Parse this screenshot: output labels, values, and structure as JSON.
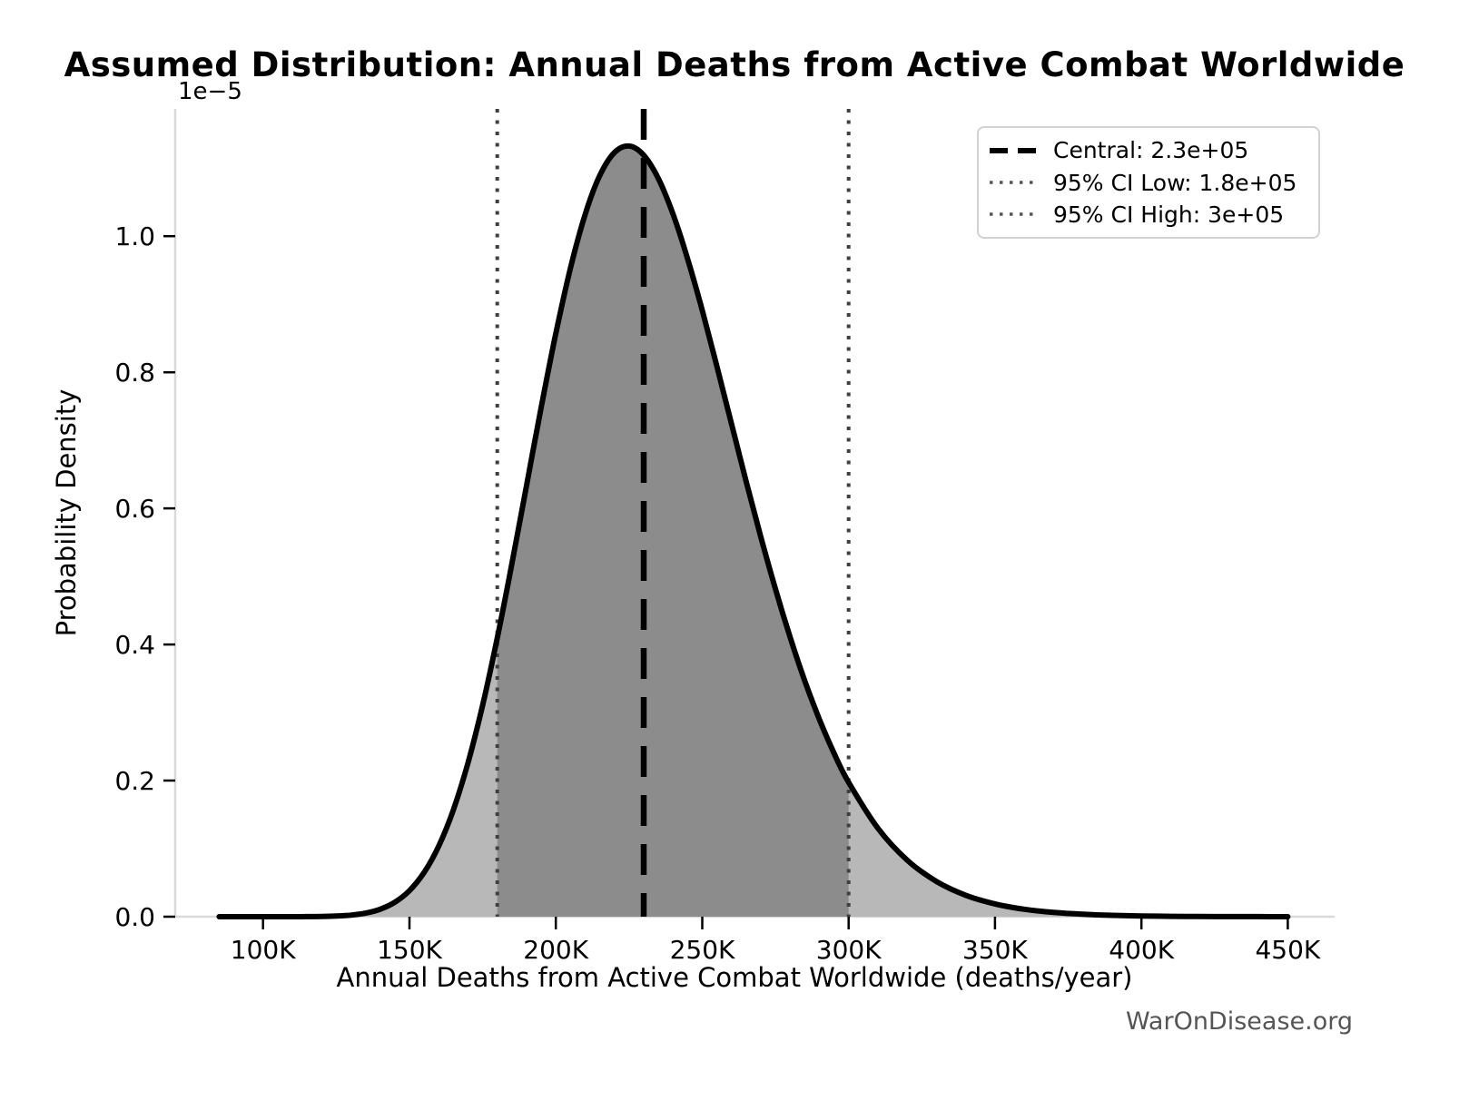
{
  "title": "Assumed Distribution: Annual Deaths from Active Combat Worldwide",
  "watermark": "WarOnDisease.org",
  "axes": {
    "xlabel": "Annual Deaths from Active Combat Worldwide (deaths/year)",
    "ylabel": "Probability Density",
    "y_scale_offset": "1e−5"
  },
  "legend": {
    "entries": [
      {
        "label": "Central: 2.3e+05",
        "line_style": "dashed",
        "color": "#000000",
        "width": 6
      },
      {
        "label": "95% CI Low: 1.8e+05",
        "line_style": "dotted",
        "color": "#555555",
        "width": 3.5
      },
      {
        "label": "95% CI High: 3e+05",
        "line_style": "dotted",
        "color": "#555555",
        "width": 3.5
      }
    ]
  },
  "chart_data": {
    "type": "area",
    "title": "Assumed Distribution: Annual Deaths from Active Combat Worldwide",
    "xlabel": "Annual Deaths from Active Combat Worldwide (deaths/year)",
    "ylabel": "Probability Density",
    "y_units": "1e-5 probability density",
    "grid": false,
    "legend_position": "upper right",
    "xlim": [
      70000,
      466000
    ],
    "ylim": [
      0,
      1.187
    ],
    "x_ticks": [
      {
        "value": 100000,
        "label": "100K"
      },
      {
        "value": 150000,
        "label": "150K"
      },
      {
        "value": 200000,
        "label": "200K"
      },
      {
        "value": 250000,
        "label": "250K"
      },
      {
        "value": 300000,
        "label": "300K"
      },
      {
        "value": 350000,
        "label": "350K"
      },
      {
        "value": 400000,
        "label": "400K"
      },
      {
        "value": 450000,
        "label": "450K"
      }
    ],
    "y_ticks": [
      {
        "value": 0.0,
        "label": "0.0"
      },
      {
        "value": 0.2,
        "label": "0.2"
      },
      {
        "value": 0.4,
        "label": "0.4"
      },
      {
        "value": 0.6,
        "label": "0.6"
      },
      {
        "value": 0.8,
        "label": "0.8"
      },
      {
        "value": 1.0,
        "label": "1.0"
      }
    ],
    "central": {
      "value": 230000,
      "label": "Central: 2.3e+05"
    },
    "ci_low": {
      "value": 180000,
      "label": "95% CI Low: 1.8e+05"
    },
    "ci_high": {
      "value": 300000,
      "label": "95% CI High: 3e+05"
    },
    "curve_points": [
      [
        85000,
        0.0
      ],
      [
        90000,
        0.0
      ],
      [
        95000,
        0.0
      ],
      [
        100000,
        0.0
      ],
      [
        105000,
        0.0
      ],
      [
        110000,
        0.0
      ],
      [
        115000,
        0.0001
      ],
      [
        120000,
        0.0003
      ],
      [
        125000,
        0.0009
      ],
      [
        130000,
        0.0023
      ],
      [
        135000,
        0.0052
      ],
      [
        140000,
        0.0109
      ],
      [
        145000,
        0.0212
      ],
      [
        150000,
        0.0383
      ],
      [
        155000,
        0.065
      ],
      [
        160000,
        0.1038
      ],
      [
        165000,
        0.1571
      ],
      [
        170000,
        0.2261
      ],
      [
        175000,
        0.3108
      ],
      [
        180000,
        0.4095
      ],
      [
        185000,
        0.5187
      ],
      [
        190000,
        0.6338
      ],
      [
        195000,
        0.7486
      ],
      [
        200000,
        0.857
      ],
      [
        205000,
        0.9531
      ],
      [
        210000,
        1.0317
      ],
      [
        215000,
        1.0891
      ],
      [
        220000,
        1.1228
      ],
      [
        225000,
        1.1325
      ],
      [
        230000,
        1.119
      ],
      [
        235000,
        1.0848
      ],
      [
        240000,
        1.0328
      ],
      [
        245000,
        0.9668
      ],
      [
        250000,
        0.891
      ],
      [
        255000,
        0.8087
      ],
      [
        260000,
        0.7242
      ],
      [
        265000,
        0.6397
      ],
      [
        270000,
        0.5584
      ],
      [
        275000,
        0.4816
      ],
      [
        280000,
        0.411
      ],
      [
        285000,
        0.3469
      ],
      [
        290000,
        0.2902
      ],
      [
        295000,
        0.2403
      ],
      [
        300000,
        0.1974
      ],
      [
        310000,
        0.13
      ],
      [
        320000,
        0.0831
      ],
      [
        330000,
        0.0518
      ],
      [
        340000,
        0.0315
      ],
      [
        350000,
        0.0188
      ],
      [
        360000,
        0.011
      ],
      [
        370000,
        0.0063
      ],
      [
        380000,
        0.0036
      ],
      [
        390000,
        0.002
      ],
      [
        400000,
        0.0011
      ],
      [
        410000,
        0.0006
      ],
      [
        420000,
        0.0003
      ],
      [
        430000,
        0.0002
      ],
      [
        440000,
        0.0001
      ],
      [
        450000,
        0.0
      ]
    ],
    "colors": {
      "curve": "#000000",
      "fill_outer": "#b8b8b8",
      "fill_inner": "#8c8c8c",
      "vline_central": "#000000",
      "vline_ci": "#3f3f3f",
      "spine": "#d9d9d9",
      "tick": "#000000",
      "text": "#000000",
      "watermark": "#555555"
    }
  }
}
